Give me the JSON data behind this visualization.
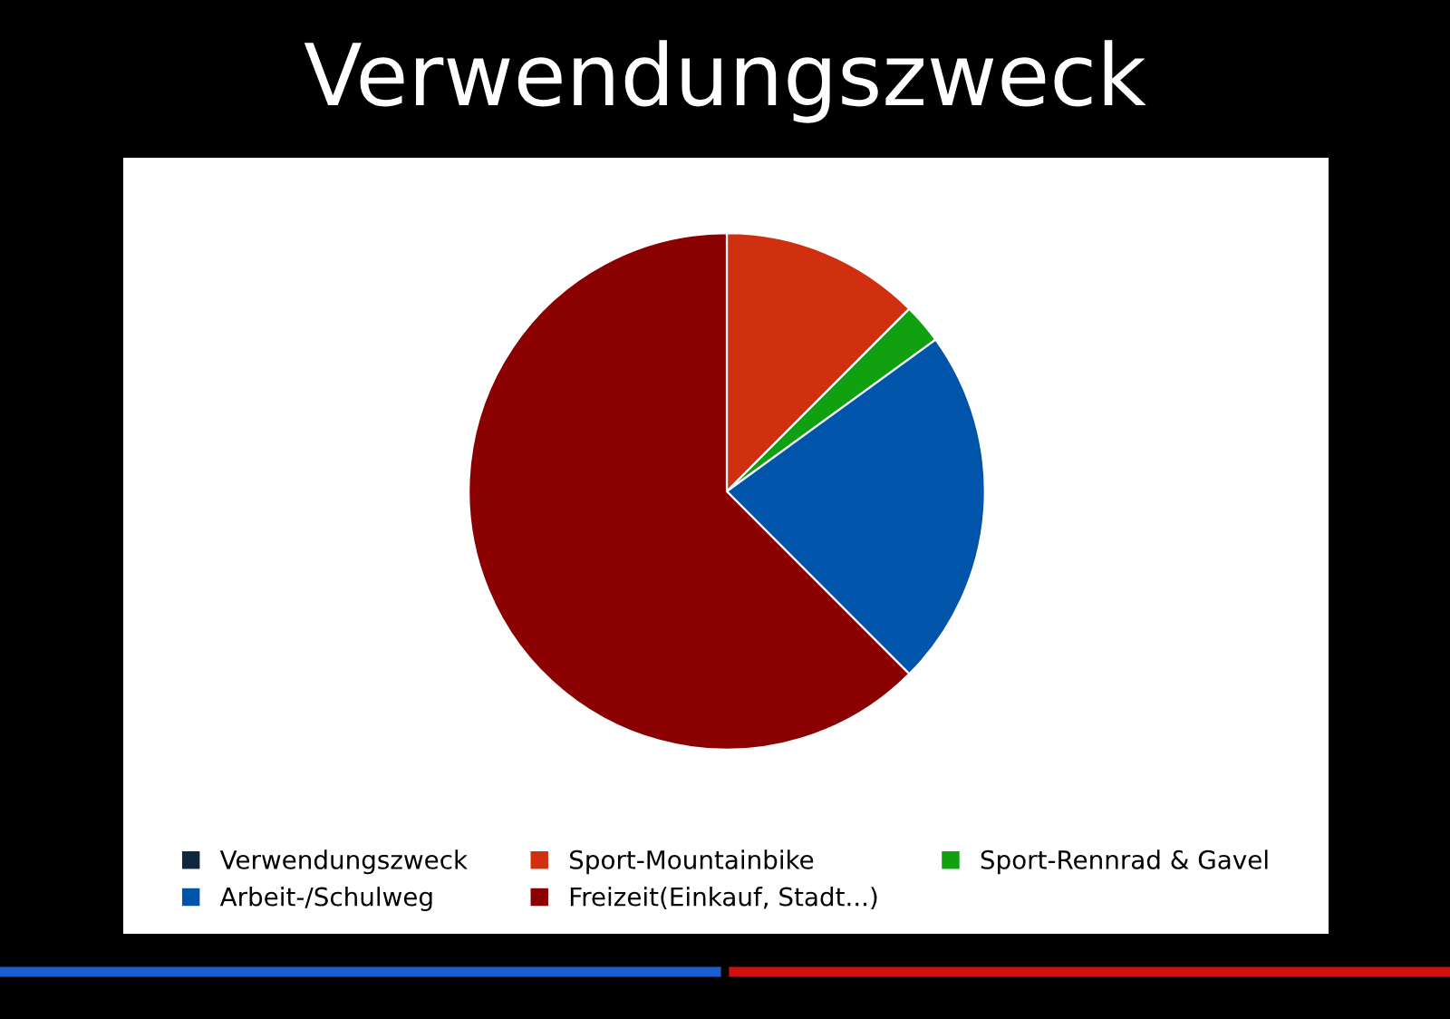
{
  "chart_data": {
    "type": "pie",
    "title": "Verwendungszweck",
    "categories": [
      "Verwendungszweck",
      "Sport-Mountainbike",
      "Sport-Rennrad & Gavel",
      "Arbeit-/Schulweg",
      "Freizeit(Einkauf, Stadt...)"
    ],
    "values": [
      0,
      12.5,
      2.5,
      22.5,
      62.5
    ],
    "colors": [
      "#0e2841",
      "#d03010",
      "#10a010",
      "#0055aa",
      "#8b0000"
    ],
    "legend": "bottom"
  }
}
